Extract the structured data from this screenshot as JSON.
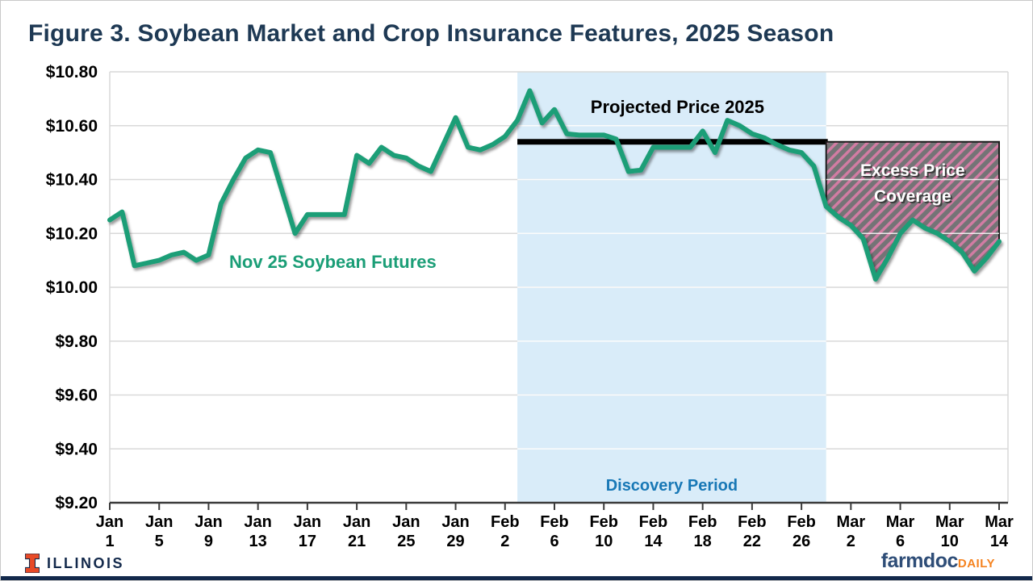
{
  "title": "Figure 3. Soybean Market and Crop Insurance Features, 2025 Season",
  "footer": {
    "illinois_wordmark": "ILLINOIS",
    "farmdoc": "farmdoc",
    "daily": "DAILY"
  },
  "colors": {
    "title_navy": "#1e3954",
    "futures_green": "#1b9e77",
    "discovery_fill": "#d9ecf9",
    "discovery_text": "#1878b6",
    "projected_black": "#000000",
    "gridline_gray": "#d9d9d9",
    "axis_dark": "#3a3a3a",
    "hatch_gray": "#747476",
    "hatch_pink": "#d27ca3",
    "excess_text_white": "#ffffff",
    "illinois_orange": "#e84a27",
    "illinois_navy": "#13294b",
    "farmdoc_navy": "#2e4d77",
    "daily_orange": "#f5821e"
  },
  "chart_data": {
    "type": "line",
    "title": "Figure 3. Soybean Market and Crop Insurance Features, 2025 Season",
    "xlabel": "",
    "ylabel": "",
    "ylim": [
      9.2,
      10.8
    ],
    "y_tick_step": 0.2,
    "y_tick_labels": [
      "$10.80",
      "$10.60",
      "$10.40",
      "$10.20",
      "$10.00",
      "$9.80",
      "$9.60",
      "$9.40",
      "$9.20"
    ],
    "x_tick_labels": [
      "Jan 1",
      "Jan 5",
      "Jan 9",
      "Jan 13",
      "Jan 17",
      "Jan 21",
      "Jan 25",
      "Jan 29",
      "Feb 2",
      "Feb 6",
      "Feb 10",
      "Feb 14",
      "Feb 18",
      "Feb 22",
      "Feb 26",
      "Mar 2",
      "Mar 6",
      "Mar 10",
      "Mar 14"
    ],
    "grid": "horizontal",
    "legend_position": "none",
    "series": [
      {
        "name": "Nov 25 Soybean Futures",
        "dates": [
          "Jan 1",
          "Jan 2",
          "Jan 3",
          "Jan 4",
          "Jan 5",
          "Jan 6",
          "Jan 7",
          "Jan 8",
          "Jan 9",
          "Jan 10",
          "Jan 11",
          "Jan 12",
          "Jan 13",
          "Jan 14",
          "Jan 15",
          "Jan 16",
          "Jan 17",
          "Jan 18",
          "Jan 19",
          "Jan 20",
          "Jan 21",
          "Jan 22",
          "Jan 23",
          "Jan 24",
          "Jan 25",
          "Jan 26",
          "Jan 27",
          "Jan 28",
          "Jan 29",
          "Jan 30",
          "Jan 31",
          "Feb 1",
          "Feb 2",
          "Feb 3",
          "Feb 4",
          "Feb 5",
          "Feb 6",
          "Feb 7",
          "Feb 8",
          "Feb 9",
          "Feb 10",
          "Feb 11",
          "Feb 12",
          "Feb 13",
          "Feb 14",
          "Feb 15",
          "Feb 16",
          "Feb 17",
          "Feb 18",
          "Feb 19",
          "Feb 20",
          "Feb 21",
          "Feb 22",
          "Feb 23",
          "Feb 24",
          "Feb 25",
          "Feb 26",
          "Feb 27",
          "Feb 28",
          "Mar 1",
          "Mar 2",
          "Mar 3",
          "Mar 4",
          "Mar 5",
          "Mar 6",
          "Mar 7",
          "Mar 8",
          "Mar 9",
          "Mar 10",
          "Mar 11",
          "Mar 12",
          "Mar 13",
          "Mar 14"
        ],
        "values": [
          10.25,
          10.28,
          10.08,
          10.09,
          10.1,
          10.12,
          10.13,
          10.1,
          10.12,
          10.31,
          10.4,
          10.48,
          10.51,
          10.5,
          10.35,
          10.2,
          10.27,
          10.27,
          10.27,
          10.27,
          10.49,
          10.46,
          10.52,
          10.49,
          10.48,
          10.45,
          10.43,
          10.53,
          10.63,
          10.52,
          10.51,
          10.53,
          10.56,
          10.62,
          10.73,
          10.61,
          10.66,
          10.57,
          10.565,
          10.565,
          10.565,
          10.55,
          10.43,
          10.435,
          10.52,
          10.52,
          10.52,
          10.52,
          10.58,
          10.5,
          10.62,
          10.6,
          10.57,
          10.555,
          10.53,
          10.51,
          10.5,
          10.45,
          10.3,
          10.26,
          10.23,
          10.18,
          10.03,
          10.11,
          10.2,
          10.25,
          10.22,
          10.2,
          10.17,
          10.13,
          10.06,
          10.11,
          10.17
        ]
      }
    ],
    "annotations": {
      "series_label": "Nov 25 Soybean Futures",
      "projected_price": {
        "label": "Projected Price 2025",
        "value": 10.54,
        "start_date": "Feb 3",
        "end_date": "Feb 28"
      },
      "discovery_period": {
        "label": "Discovery Period",
        "start_date": "Feb 3",
        "end_date": "Feb 28"
      },
      "excess_price_coverage": {
        "label_lines": [
          "Excess Price",
          "Coverage"
        ],
        "top_value": 10.54,
        "start_date": "Feb 28",
        "end_date": "Mar 14"
      }
    }
  }
}
